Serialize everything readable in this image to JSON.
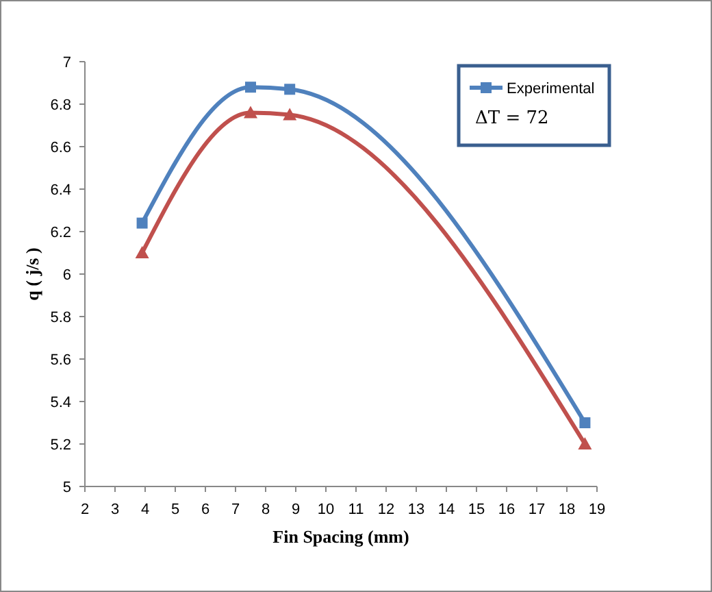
{
  "chart_data": {
    "type": "line",
    "xlabel": "Fin Spacing (mm)",
    "ylabel": "q ( j/s )",
    "x": [
      3.9,
      7.5,
      8.8,
      18.6
    ],
    "series": [
      {
        "name": "Experimental",
        "color": "#4f81bd",
        "marker": "square",
        "values": [
          6.24,
          6.88,
          6.87,
          5.3
        ]
      },
      {
        "color": "#c0504d",
        "marker": "triangle",
        "values": [
          6.1,
          6.76,
          6.75,
          5.2
        ]
      }
    ],
    "xlim": [
      2,
      19
    ],
    "xticks": [
      2,
      3,
      4,
      5,
      6,
      7,
      8,
      9,
      10,
      11,
      12,
      13,
      14,
      15,
      16,
      17,
      18,
      19
    ],
    "ylim": [
      5,
      7
    ],
    "yticks": [
      5,
      {
        "value": 5.2,
        "label": "5.2"
      },
      {
        "value": 5.4,
        "label": "5.4"
      },
      {
        "value": 5.6,
        "label": "5.6"
      },
      {
        "value": 5.8,
        "label": "5.8"
      },
      6,
      {
        "value": 6.2,
        "label": "6.2"
      },
      {
        "value": 6.4,
        "label": "6.4"
      },
      {
        "value": 6.6,
        "label": "6.6"
      },
      {
        "value": 6.8,
        "label": "6.8"
      },
      7
    ],
    "grid": false,
    "legend": "top right",
    "annotations": [
      "ΔT = 72"
    ]
  }
}
